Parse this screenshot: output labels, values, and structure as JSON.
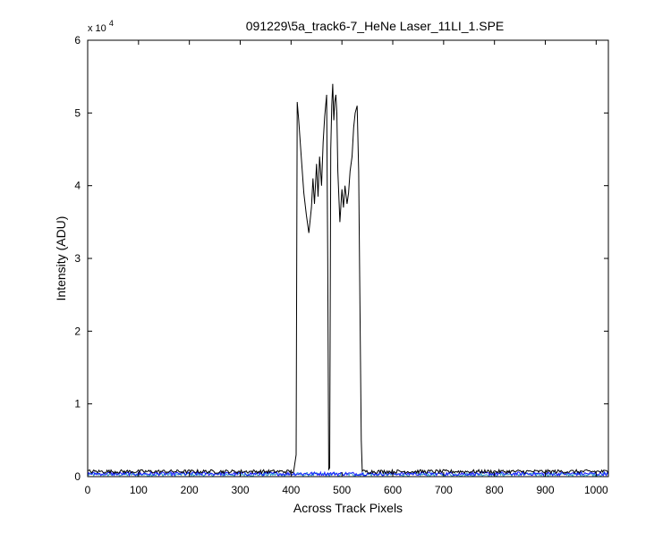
{
  "figure": {
    "background": "#ffffff",
    "axes_color": "#000000"
  },
  "chart_data": {
    "type": "line",
    "title": "091229\\5a_track6-7_HeNe Laser_11LI_1.SPE",
    "xlabel": "Across Track Pixels",
    "ylabel": "Intensity (ADU)",
    "y_exponent_label": {
      "base": "x 10",
      "power": "4"
    },
    "xlim": [
      0,
      1024
    ],
    "ylim": [
      0,
      60000
    ],
    "xticks": [
      0,
      100,
      200,
      300,
      400,
      500,
      600,
      700,
      800,
      900,
      1000
    ],
    "xtick_labels": [
      "0",
      "100",
      "200",
      "300",
      "400",
      "500",
      "600",
      "700",
      "800",
      "900",
      "1000"
    ],
    "yticks": [
      0,
      10000,
      20000,
      30000,
      40000,
      50000,
      60000
    ],
    "ytick_labels": [
      "0",
      "1",
      "2",
      "3",
      "4",
      "5",
      "6"
    ],
    "grid": false,
    "series": [
      {
        "color": "#000000",
        "baseline": 700,
        "x": [
          0,
          405,
          410,
          412,
          415,
          420,
          425,
          430,
          435,
          440,
          443,
          446,
          450,
          453,
          456,
          460,
          463,
          466,
          470,
          472,
          474,
          476,
          478,
          480,
          482,
          484,
          486,
          488,
          490,
          492,
          496,
          500,
          503,
          506,
          510,
          513,
          516,
          520,
          523,
          526,
          530,
          533,
          536,
          538,
          540,
          545,
          1024
        ],
        "y": [
          700,
          700,
          3000,
          51500,
          49000,
          44000,
          39000,
          36000,
          33500,
          37000,
          41000,
          37500,
          43000,
          38500,
          44000,
          40000,
          46000,
          49500,
          52500,
          30000,
          1000,
          1200,
          45000,
          51000,
          54000,
          49000,
          51500,
          52500,
          50000,
          42000,
          35000,
          39500,
          37000,
          40000,
          37500,
          39000,
          42000,
          44000,
          48000,
          50000,
          51000,
          42000,
          20000,
          5000,
          700,
          700,
          700
        ]
      },
      {
        "color": "#1a1aff",
        "baseline": 400,
        "x": [
          0,
          1024
        ],
        "y": [
          400,
          400
        ]
      },
      {
        "color": "#2f9fd0",
        "baseline": 300,
        "x": [
          0,
          1024
        ],
        "y": [
          300,
          300
        ]
      }
    ]
  }
}
